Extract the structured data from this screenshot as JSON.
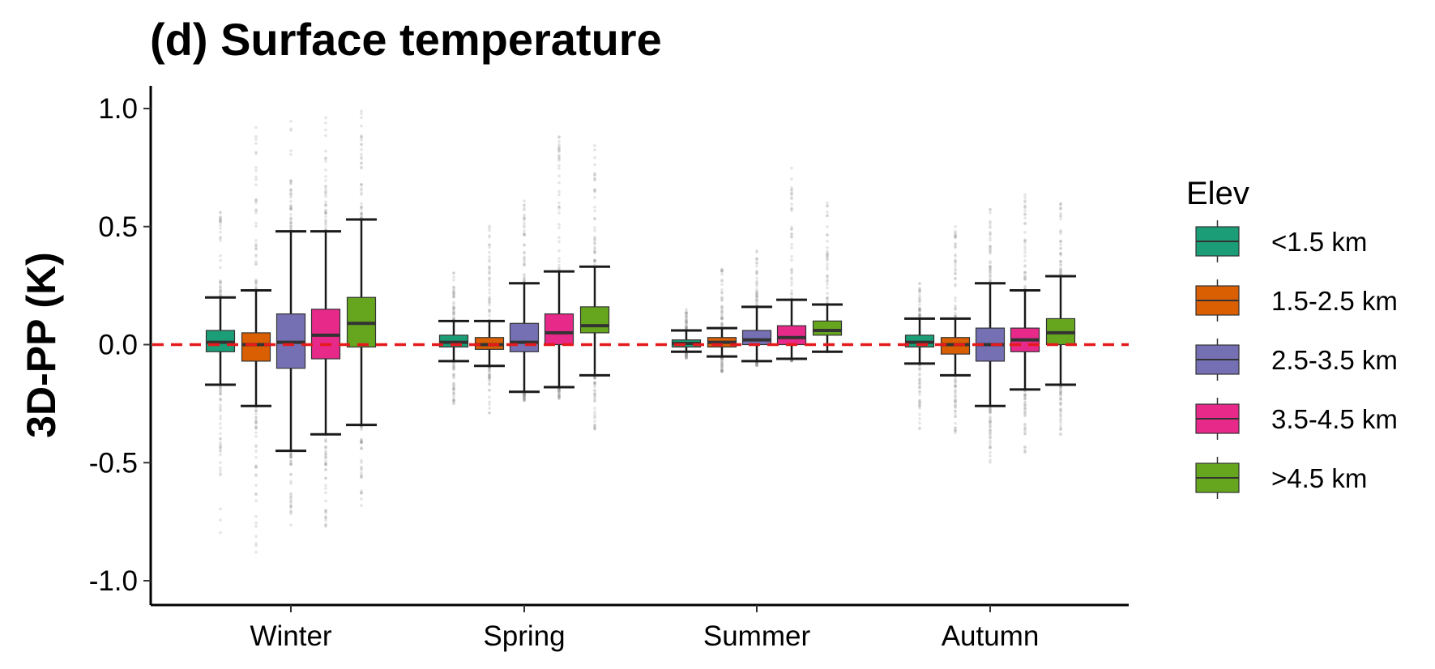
{
  "chart_data": {
    "type": "boxplot",
    "title": "(d) Surface temperature",
    "xlabel": "",
    "ylabel": "3D-PP (K)",
    "ylim": [
      -1.1,
      1.1
    ],
    "yticks": [
      "1.0",
      "0.5",
      "0.0",
      "-0.5",
      "-1.0"
    ],
    "ytick_values": [
      1.0,
      0.5,
      0.0,
      -0.5,
      -1.0
    ],
    "reference_line": {
      "y": 0.0,
      "style": "dashed",
      "color": "#e41a1c"
    },
    "categories": [
      "Winter",
      "Spring",
      "Summer",
      "Autumn"
    ],
    "legend": {
      "title": "Elev",
      "position": "right"
    },
    "series": [
      {
        "name": "<1.5 km",
        "color": "#1b9e77",
        "boxes": [
          {
            "whisker_low": -0.17,
            "q1": -0.03,
            "median": 0.01,
            "q3": 0.06,
            "whisker_high": 0.2,
            "outlier_low": -0.8,
            "outlier_high": 0.57
          },
          {
            "whisker_low": -0.07,
            "q1": -0.01,
            "median": 0.01,
            "q3": 0.04,
            "whisker_high": 0.1,
            "outlier_low": -0.27,
            "outlier_high": 0.31
          },
          {
            "whisker_low": -0.03,
            "q1": -0.01,
            "median": 0.005,
            "q3": 0.02,
            "whisker_high": 0.06,
            "outlier_low": -0.06,
            "outlier_high": 0.15
          },
          {
            "whisker_low": -0.08,
            "q1": -0.01,
            "median": 0.01,
            "q3": 0.04,
            "whisker_high": 0.11,
            "outlier_low": -0.36,
            "outlier_high": 0.27
          }
        ]
      },
      {
        "name": "1.5-2.5 km",
        "color": "#d95f02",
        "boxes": [
          {
            "whisker_low": -0.26,
            "q1": -0.07,
            "median": 0.0,
            "q3": 0.05,
            "whisker_high": 0.23,
            "outlier_low": -0.89,
            "outlier_high": 0.95
          },
          {
            "whisker_low": -0.09,
            "q1": -0.02,
            "median": 0.0,
            "q3": 0.03,
            "whisker_high": 0.1,
            "outlier_low": -0.3,
            "outlier_high": 0.51
          },
          {
            "whisker_low": -0.05,
            "q1": -0.01,
            "median": 0.01,
            "q3": 0.03,
            "whisker_high": 0.07,
            "outlier_low": -0.12,
            "outlier_high": 0.33
          },
          {
            "whisker_low": -0.13,
            "q1": -0.04,
            "median": 0.0,
            "q3": 0.03,
            "whisker_high": 0.11,
            "outlier_low": -0.38,
            "outlier_high": 0.51
          }
        ]
      },
      {
        "name": "2.5-3.5 km",
        "color": "#7570b3",
        "boxes": [
          {
            "whisker_low": -0.45,
            "q1": -0.1,
            "median": 0.01,
            "q3": 0.13,
            "whisker_high": 0.48,
            "outlier_low": -0.78,
            "outlier_high": 0.98
          },
          {
            "whisker_low": -0.2,
            "q1": -0.03,
            "median": 0.01,
            "q3": 0.09,
            "whisker_high": 0.26,
            "outlier_low": -0.24,
            "outlier_high": 0.64
          },
          {
            "whisker_low": -0.07,
            "q1": 0.0,
            "median": 0.02,
            "q3": 0.06,
            "whisker_high": 0.16,
            "outlier_low": -0.09,
            "outlier_high": 0.4
          },
          {
            "whisker_low": -0.26,
            "q1": -0.07,
            "median": 0.0,
            "q3": 0.07,
            "whisker_high": 0.26,
            "outlier_low": -0.51,
            "outlier_high": 0.58
          }
        ]
      },
      {
        "name": "3.5-4.5 km",
        "color": "#e7298a",
        "boxes": [
          {
            "whisker_low": -0.38,
            "q1": -0.06,
            "median": 0.04,
            "q3": 0.15,
            "whisker_high": 0.48,
            "outlier_low": -0.77,
            "outlier_high": 0.99
          },
          {
            "whisker_low": -0.18,
            "q1": 0.0,
            "median": 0.05,
            "q3": 0.13,
            "whisker_high": 0.31,
            "outlier_low": -0.23,
            "outlier_high": 0.89
          },
          {
            "whisker_low": -0.06,
            "q1": 0.0,
            "median": 0.03,
            "q3": 0.08,
            "whisker_high": 0.19,
            "outlier_low": -0.07,
            "outlier_high": 0.75
          },
          {
            "whisker_low": -0.19,
            "q1": -0.03,
            "median": 0.02,
            "q3": 0.07,
            "whisker_high": 0.23,
            "outlier_low": -0.48,
            "outlier_high": 0.64
          }
        ]
      },
      {
        "name": ">4.5 km",
        "color": "#66a61e",
        "boxes": [
          {
            "whisker_low": -0.34,
            "q1": -0.01,
            "median": 0.09,
            "q3": 0.2,
            "whisker_high": 0.53,
            "outlier_low": -0.7,
            "outlier_high": 0.99
          },
          {
            "whisker_low": -0.13,
            "q1": 0.05,
            "median": 0.08,
            "q3": 0.16,
            "whisker_high": 0.33,
            "outlier_low": -0.37,
            "outlier_high": 0.93
          },
          {
            "whisker_low": -0.03,
            "q1": 0.04,
            "median": 0.06,
            "q3": 0.1,
            "whisker_high": 0.17,
            "outlier_low": -0.03,
            "outlier_high": 0.6
          },
          {
            "whisker_low": -0.17,
            "q1": 0.0,
            "median": 0.05,
            "q3": 0.11,
            "whisker_high": 0.29,
            "outlier_low": -0.4,
            "outlier_high": 0.61
          }
        ]
      }
    ]
  }
}
